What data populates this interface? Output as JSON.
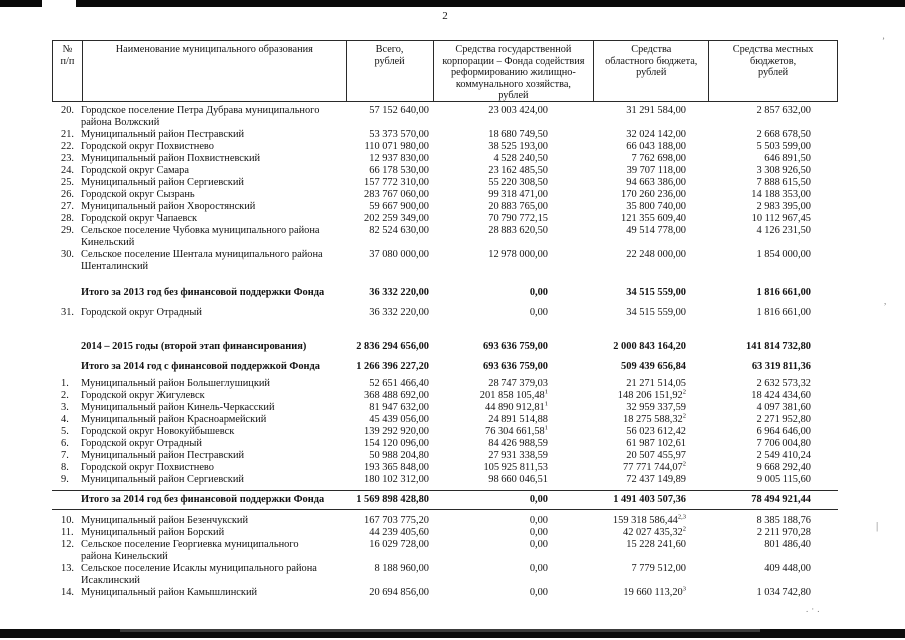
{
  "page": {
    "number": "2"
  },
  "table": {
    "headers": [
      {
        "text": "№\nп/п"
      },
      {
        "text": "Наименование муниципального образования"
      },
      {
        "text": "Всего,\nрублей"
      },
      {
        "text": "Средства государственной\nкорпорации – Фонда содействия\nреформированию жилищно-\nкоммунального хозяйства,\nрублей"
      },
      {
        "text": "Средства\nобластного бюджета,\nрублей"
      },
      {
        "text": "Средства местных\nбюджетов,\nрублей"
      }
    ],
    "rows": [
      {
        "type": "item",
        "num": "20.",
        "name": "Городское поселение Петра Дубрава муниципального района Волжский",
        "total": "57 152 640,00",
        "fund": "23 003 424,00",
        "regional": "31 291 584,00",
        "local": "2 857 632,00"
      },
      {
        "type": "item",
        "num": "21.",
        "name": "Муниципальный район Пестравский",
        "total": "53 373 570,00",
        "fund": "18 680 749,50",
        "regional": "32 024 142,00",
        "local": "2 668 678,50"
      },
      {
        "type": "item",
        "num": "22.",
        "name": "Городской округ Похвистнево",
        "total": "110 071 980,00",
        "fund": "38 525 193,00",
        "regional": "66 043 188,00",
        "local": "5 503 599,00"
      },
      {
        "type": "item",
        "num": "23.",
        "name": "Муниципальный район Похвистневский",
        "total": "12 937 830,00",
        "fund": "4 528 240,50",
        "regional": "7 762 698,00",
        "local": "646 891,50"
      },
      {
        "type": "item",
        "num": "24.",
        "name": "Городской округ Самара",
        "total": "66 178 530,00",
        "fund": "23 162 485,50",
        "regional": "39 707 118,00",
        "local": "3 308 926,50"
      },
      {
        "type": "item",
        "num": "25.",
        "name": "Муниципальный район Сергиевский",
        "total": "157 772 310,00",
        "fund": "55 220 308,50",
        "regional": "94 663 386,00",
        "local": "7 888 615,50"
      },
      {
        "type": "item",
        "num": "26.",
        "name": "Городской округ Сызрань",
        "total": "283 767 060,00",
        "fund": "99 318 471,00",
        "regional": "170 260 236,00",
        "local": "14 188 353,00"
      },
      {
        "type": "item",
        "num": "27.",
        "name": "Муниципальный район Хворостянский",
        "total": "59 667 900,00",
        "fund": "20 883 765,00",
        "regional": "35 800 740,00",
        "local": "2 983 395,00"
      },
      {
        "type": "item",
        "num": "28.",
        "name": "Городской округ Чапаевск",
        "total": "202 259 349,00",
        "fund": "70 790 772,15",
        "regional": "121 355 609,40",
        "local": "10 112 967,45"
      },
      {
        "type": "item",
        "num": "29.",
        "name": "Сельское поселение Чубовка муниципального района Кинельский",
        "total": "82 524 630,00",
        "fund": "28 883 620,50",
        "regional": "49 514 778,00",
        "local": "4 126 231,50"
      },
      {
        "type": "item",
        "num": "30.",
        "name": "Сельское поселение Шентала муниципального района Шенталинский",
        "total": "37 080 000,00",
        "fund": "12 978 000,00",
        "regional": "22 248 000,00",
        "local": "1 854 000,00"
      },
      {
        "type": "total",
        "gap": "lg",
        "num": "",
        "name": "Итого за 2013 год без финансовой поддержки Фонда",
        "total": "36 332 220,00",
        "fund": "0,00",
        "regional": "34 515 559,00",
        "local": "1 816 661,00"
      },
      {
        "type": "item",
        "gap": "md",
        "num": "31.",
        "name": "Городской округ Отрадный",
        "total": "36 332 220,00",
        "fund": "0,00",
        "regional": "34 515 559,00",
        "local": "1 816 661,00"
      },
      {
        "type": "stage",
        "gap": "xl",
        "num": "",
        "name": "2014 – 2015 годы (второй этап финансирования)",
        "total": "2 836 294 656,00",
        "fund": "693 636 759,00",
        "regional": "2 000 843 164,20",
        "local": "141 814 732,80"
      },
      {
        "type": "total",
        "gap": "md",
        "num": "",
        "name": "Итого за 2014 год с финансовой поддержкой Фонда",
        "total": "1 266 396 227,20",
        "fund": "693 636 759,00",
        "regional": "509 439 656,84",
        "local": "63 319 811,36"
      },
      {
        "type": "item",
        "gap": "sm",
        "num": "1.",
        "name": "Муниципальный район Большеглушицкий",
        "total": "52 651 466,40",
        "fund": "28 747 379,03",
        "regional": "21 271 514,05",
        "local": "2 632 573,32"
      },
      {
        "type": "item",
        "num": "2.",
        "name": "Городской округ Жигулевск",
        "total": "368 488 692,00",
        "fund": "201 858 105,48",
        "fund_sup": "1",
        "regional": "148 206 151,92",
        "regional_sup": "2",
        "local": "18 424 434,60"
      },
      {
        "type": "item",
        "num": "3.",
        "name": "Муниципальный район Кинель-Черкасский",
        "total": "81 947 632,00",
        "fund": "44 890 912,81",
        "fund_sup": "1",
        "regional": "32 959 337,59",
        "local": "4 097 381,60"
      },
      {
        "type": "item",
        "num": "4.",
        "name": "Муниципальный район Красноармейский",
        "total": "45 439 056,00",
        "fund": "24 891 514,88",
        "regional": "18 275 588,32",
        "regional_sup": "2",
        "local": "2 271 952,80"
      },
      {
        "type": "item",
        "num": "5.",
        "name": "Городской округ Новокуйбышевск",
        "total": "139 292 920,00",
        "fund": "76 304 661,58",
        "fund_sup": "1",
        "regional": "56 023 612,42",
        "local": "6 964 646,00"
      },
      {
        "type": "item",
        "num": "6.",
        "name": "Городской округ Отрадный",
        "total": "154 120 096,00",
        "fund": "84 426 988,59",
        "regional": "61 987 102,61",
        "local": "7 706 004,80"
      },
      {
        "type": "item",
        "num": "7.",
        "name": "Муниципальный район Пестравский",
        "total": "50 988 204,80",
        "fund": "27 931 338,59",
        "regional": "20 507 455,97",
        "local": "2 549 410,24"
      },
      {
        "type": "item",
        "num": "8.",
        "name": "Городской округ Похвистнево",
        "total": "193 365 848,00",
        "fund": "105 925 811,53",
        "regional": "77 771 744,07",
        "regional_sup": "2",
        "local": "9 668 292,40"
      },
      {
        "type": "item",
        "num": "9.",
        "name": "Муниципальный район Сергиевский",
        "total": "180 102 312,00",
        "fund": "98 660 046,51",
        "regional": "72 437 149,89",
        "local": "9 005 115,60"
      },
      {
        "type": "total_ruled",
        "num": "",
        "name": "Итого за 2014 год без финансовой поддержки Фонда",
        "total": "1 569 898 428,80",
        "fund": "0,00",
        "regional": "1 491 403 507,36",
        "local": "78 494 921,44"
      },
      {
        "type": "item",
        "gap": "sm",
        "num": "10.",
        "name": "Муниципальный район Безенчукский",
        "total": "167 703 775,20",
        "fund": "0,00",
        "regional": "159 318 586,44",
        "regional_sup": "2,3",
        "local": "8 385 188,76"
      },
      {
        "type": "item",
        "num": "11.",
        "name": "Муниципальный район Борский",
        "total": "44 239 405,60",
        "fund": "0,00",
        "regional": "42 027 435,32",
        "regional_sup": "2",
        "local": "2 211 970,28"
      },
      {
        "type": "item",
        "num": "12.",
        "name": "Сельское поселение Георгиевка муниципального района Кинельский",
        "total": "16 029 728,00",
        "fund": "0,00",
        "regional": "15 228 241,60",
        "local": "801 486,40"
      },
      {
        "type": "item",
        "num": "13.",
        "name": "Сельское поселение Исаклы муниципального района Исаклинский",
        "total": "8 188 960,00",
        "fund": "0,00",
        "regional": "7 779 512,00",
        "local": "409 448,00"
      },
      {
        "type": "item",
        "num": "14.",
        "name": "Муниципальный район Камышлинский",
        "total": "20 694 856,00",
        "fund": "0,00",
        "regional": "19 660 113,20",
        "regional_sup": "3",
        "local": "1 034 742,80"
      }
    ]
  }
}
